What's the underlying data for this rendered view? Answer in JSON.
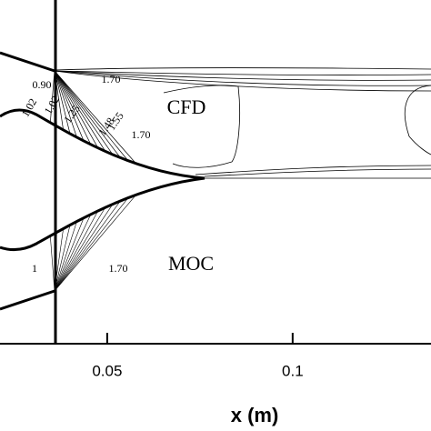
{
  "chart_data": {
    "type": "contour",
    "xlabel": "x (m)",
    "xlim": [
      0.0211,
      0.1373
    ],
    "xticks": [
      0.05,
      0.1
    ],
    "annotations": [
      "CFD",
      "MOC",
      "0.90",
      "1.02",
      "1.02",
      "1.25",
      "1.48",
      "1.55",
      "1.70",
      "1.70",
      "1",
      "1.70"
    ]
  }
}
